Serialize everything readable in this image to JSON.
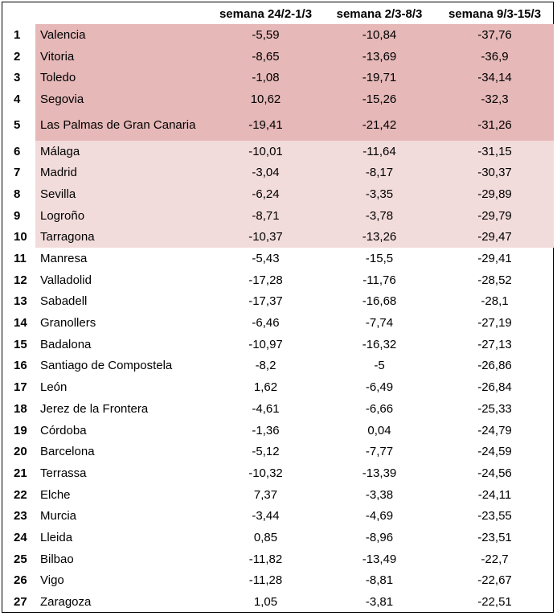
{
  "headers": [
    "",
    "",
    "semana 24/2-1/3",
    "semana 2/3-8/3",
    "semana 9/3-15/3"
  ],
  "colors": {
    "top5": "#e6b8b8",
    "top10": "#f2dcdb"
  },
  "rows": [
    {
      "rank": "1",
      "city": "Valencia",
      "w1": "-5,59",
      "w2": "-10,84",
      "w3": "-37,76"
    },
    {
      "rank": "2",
      "city": "Vitoria",
      "w1": "-8,65",
      "w2": "-13,69",
      "w3": "-36,9"
    },
    {
      "rank": "3",
      "city": "Toledo",
      "w1": "-1,08",
      "w2": "-19,71",
      "w3": "-34,14"
    },
    {
      "rank": "4",
      "city": "Segovia",
      "w1": "10,62",
      "w2": "-15,26",
      "w3": "-32,3"
    },
    {
      "rank": "5",
      "city": "Las Palmas de Gran Canaria",
      "w1": "-19,41",
      "w2": "-21,42",
      "w3": "-31,26"
    },
    {
      "rank": "6",
      "city": "Málaga",
      "w1": "-10,01",
      "w2": "-11,64",
      "w3": "-31,15"
    },
    {
      "rank": "7",
      "city": "Madrid",
      "w1": "-3,04",
      "w2": "-8,17",
      "w3": "-30,37"
    },
    {
      "rank": "8",
      "city": "Sevilla",
      "w1": "-6,24",
      "w2": "-3,35",
      "w3": "-29,89"
    },
    {
      "rank": "9",
      "city": "Logroño",
      "w1": "-8,71",
      "w2": "-3,78",
      "w3": "-29,79"
    },
    {
      "rank": "10",
      "city": "Tarragona",
      "w1": "-10,37",
      "w2": "-13,26",
      "w3": "-29,47"
    },
    {
      "rank": "11",
      "city": "Manresa",
      "w1": "-5,43",
      "w2": "-15,5",
      "w3": "-29,41"
    },
    {
      "rank": "12",
      "city": "Valladolid",
      "w1": "-17,28",
      "w2": "-11,76",
      "w3": "-28,52"
    },
    {
      "rank": "13",
      "city": "Sabadell",
      "w1": "-17,37",
      "w2": "-16,68",
      "w3": "-28,1"
    },
    {
      "rank": "14",
      "city": "Granollers",
      "w1": "-6,46",
      "w2": "-7,74",
      "w3": "-27,19"
    },
    {
      "rank": "15",
      "city": "Badalona",
      "w1": "-10,97",
      "w2": "-16,32",
      "w3": "-27,13"
    },
    {
      "rank": "16",
      "city": "Santiago de Compostela",
      "w1": "-8,2",
      "w2": "-5",
      "w3": "-26,86"
    },
    {
      "rank": "17",
      "city": "León",
      "w1": "1,62",
      "w2": "-6,49",
      "w3": "-26,84"
    },
    {
      "rank": "18",
      "city": "Jerez de la Frontera",
      "w1": "-4,61",
      "w2": "-6,66",
      "w3": "-25,33"
    },
    {
      "rank": "19",
      "city": "Córdoba",
      "w1": "-1,36",
      "w2": "0,04",
      "w3": "-24,79"
    },
    {
      "rank": "20",
      "city": "Barcelona",
      "w1": "-5,12",
      "w2": "-7,77",
      "w3": "-24,59"
    },
    {
      "rank": "21",
      "city": "Terrassa",
      "w1": "-10,32",
      "w2": "-13,39",
      "w3": "-24,56"
    },
    {
      "rank": "22",
      "city": "Elche",
      "w1": "7,37",
      "w2": "-3,38",
      "w3": "-24,11"
    },
    {
      "rank": "23",
      "city": "Murcia",
      "w1": "-3,44",
      "w2": "-4,69",
      "w3": "-23,55"
    },
    {
      "rank": "24",
      "city": "Lleida",
      "w1": "0,85",
      "w2": "-8,96",
      "w3": "-23,51"
    },
    {
      "rank": "25",
      "city": "Bilbao",
      "w1": "-11,82",
      "w2": "-13,49",
      "w3": "-22,7"
    },
    {
      "rank": "26",
      "city": "Vigo",
      "w1": "-11,28",
      "w2": "-8,81",
      "w3": "-22,67"
    },
    {
      "rank": "27",
      "city": "Zaragoza",
      "w1": "1,05",
      "w2": "-3,81",
      "w3": "-22,51"
    }
  ]
}
